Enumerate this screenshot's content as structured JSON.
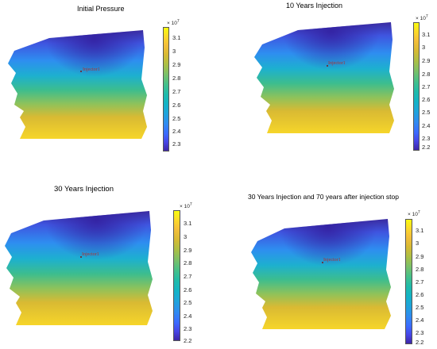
{
  "panels": [
    {
      "title": "Initial Pressure",
      "well_label": "Injector1"
    },
    {
      "title": "10 Years Injection",
      "well_label": "Injector1"
    },
    {
      "title": "30 Years Injection",
      "well_label": "Injector1"
    },
    {
      "title": "30 Years Injection and 70 years after injection stop",
      "well_label": "Injector1"
    }
  ],
  "colorbar": {
    "exponent_base": "× 10",
    "exponent_power": "7",
    "ticks": [
      "3.1",
      "3",
      "2.9",
      "2.8",
      "2.7",
      "2.6",
      "2.5",
      "2.4",
      "2.3",
      "2.2"
    ]
  }
}
